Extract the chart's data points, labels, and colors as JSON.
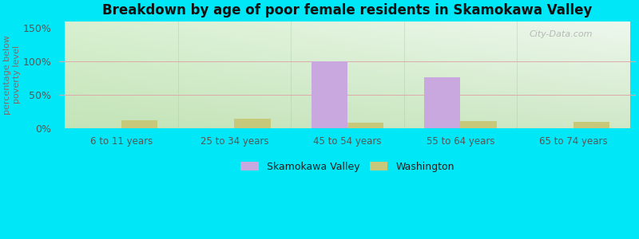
{
  "title": "Breakdown by age of poor female residents in Skamokawa Valley",
  "ylabel": "percentage below\npoverty level",
  "categories": [
    "6 to 11 years",
    "25 to 34 years",
    "45 to 54 years",
    "55 to 64 years",
    "65 to 74 years"
  ],
  "skamokawa_values": [
    0,
    0,
    100,
    76,
    0
  ],
  "washington_values": [
    12,
    14,
    9,
    11,
    10
  ],
  "skamokawa_color": "#c8a8df",
  "washington_color": "#c8c87a",
  "bg_outer": "#00e8f8",
  "bg_top_left": "#c8e8c0",
  "bg_top_right": "#e8f4e8",
  "bg_bottom": "#c0e8b8",
  "yticks": [
    0,
    50,
    100,
    150
  ],
  "ytick_labels": [
    "0%",
    "50%",
    "100%",
    "150%"
  ],
  "ylim": [
    0,
    160
  ],
  "bar_width": 0.32,
  "legend_skamokawa": "Skamokawa Valley",
  "legend_washington": "Washington",
  "watermark": "City-Data.com",
  "ylabel_color": "#886666",
  "title_color": "#111111",
  "tick_color": "#555555",
  "grid_color": "#ddbbbb"
}
